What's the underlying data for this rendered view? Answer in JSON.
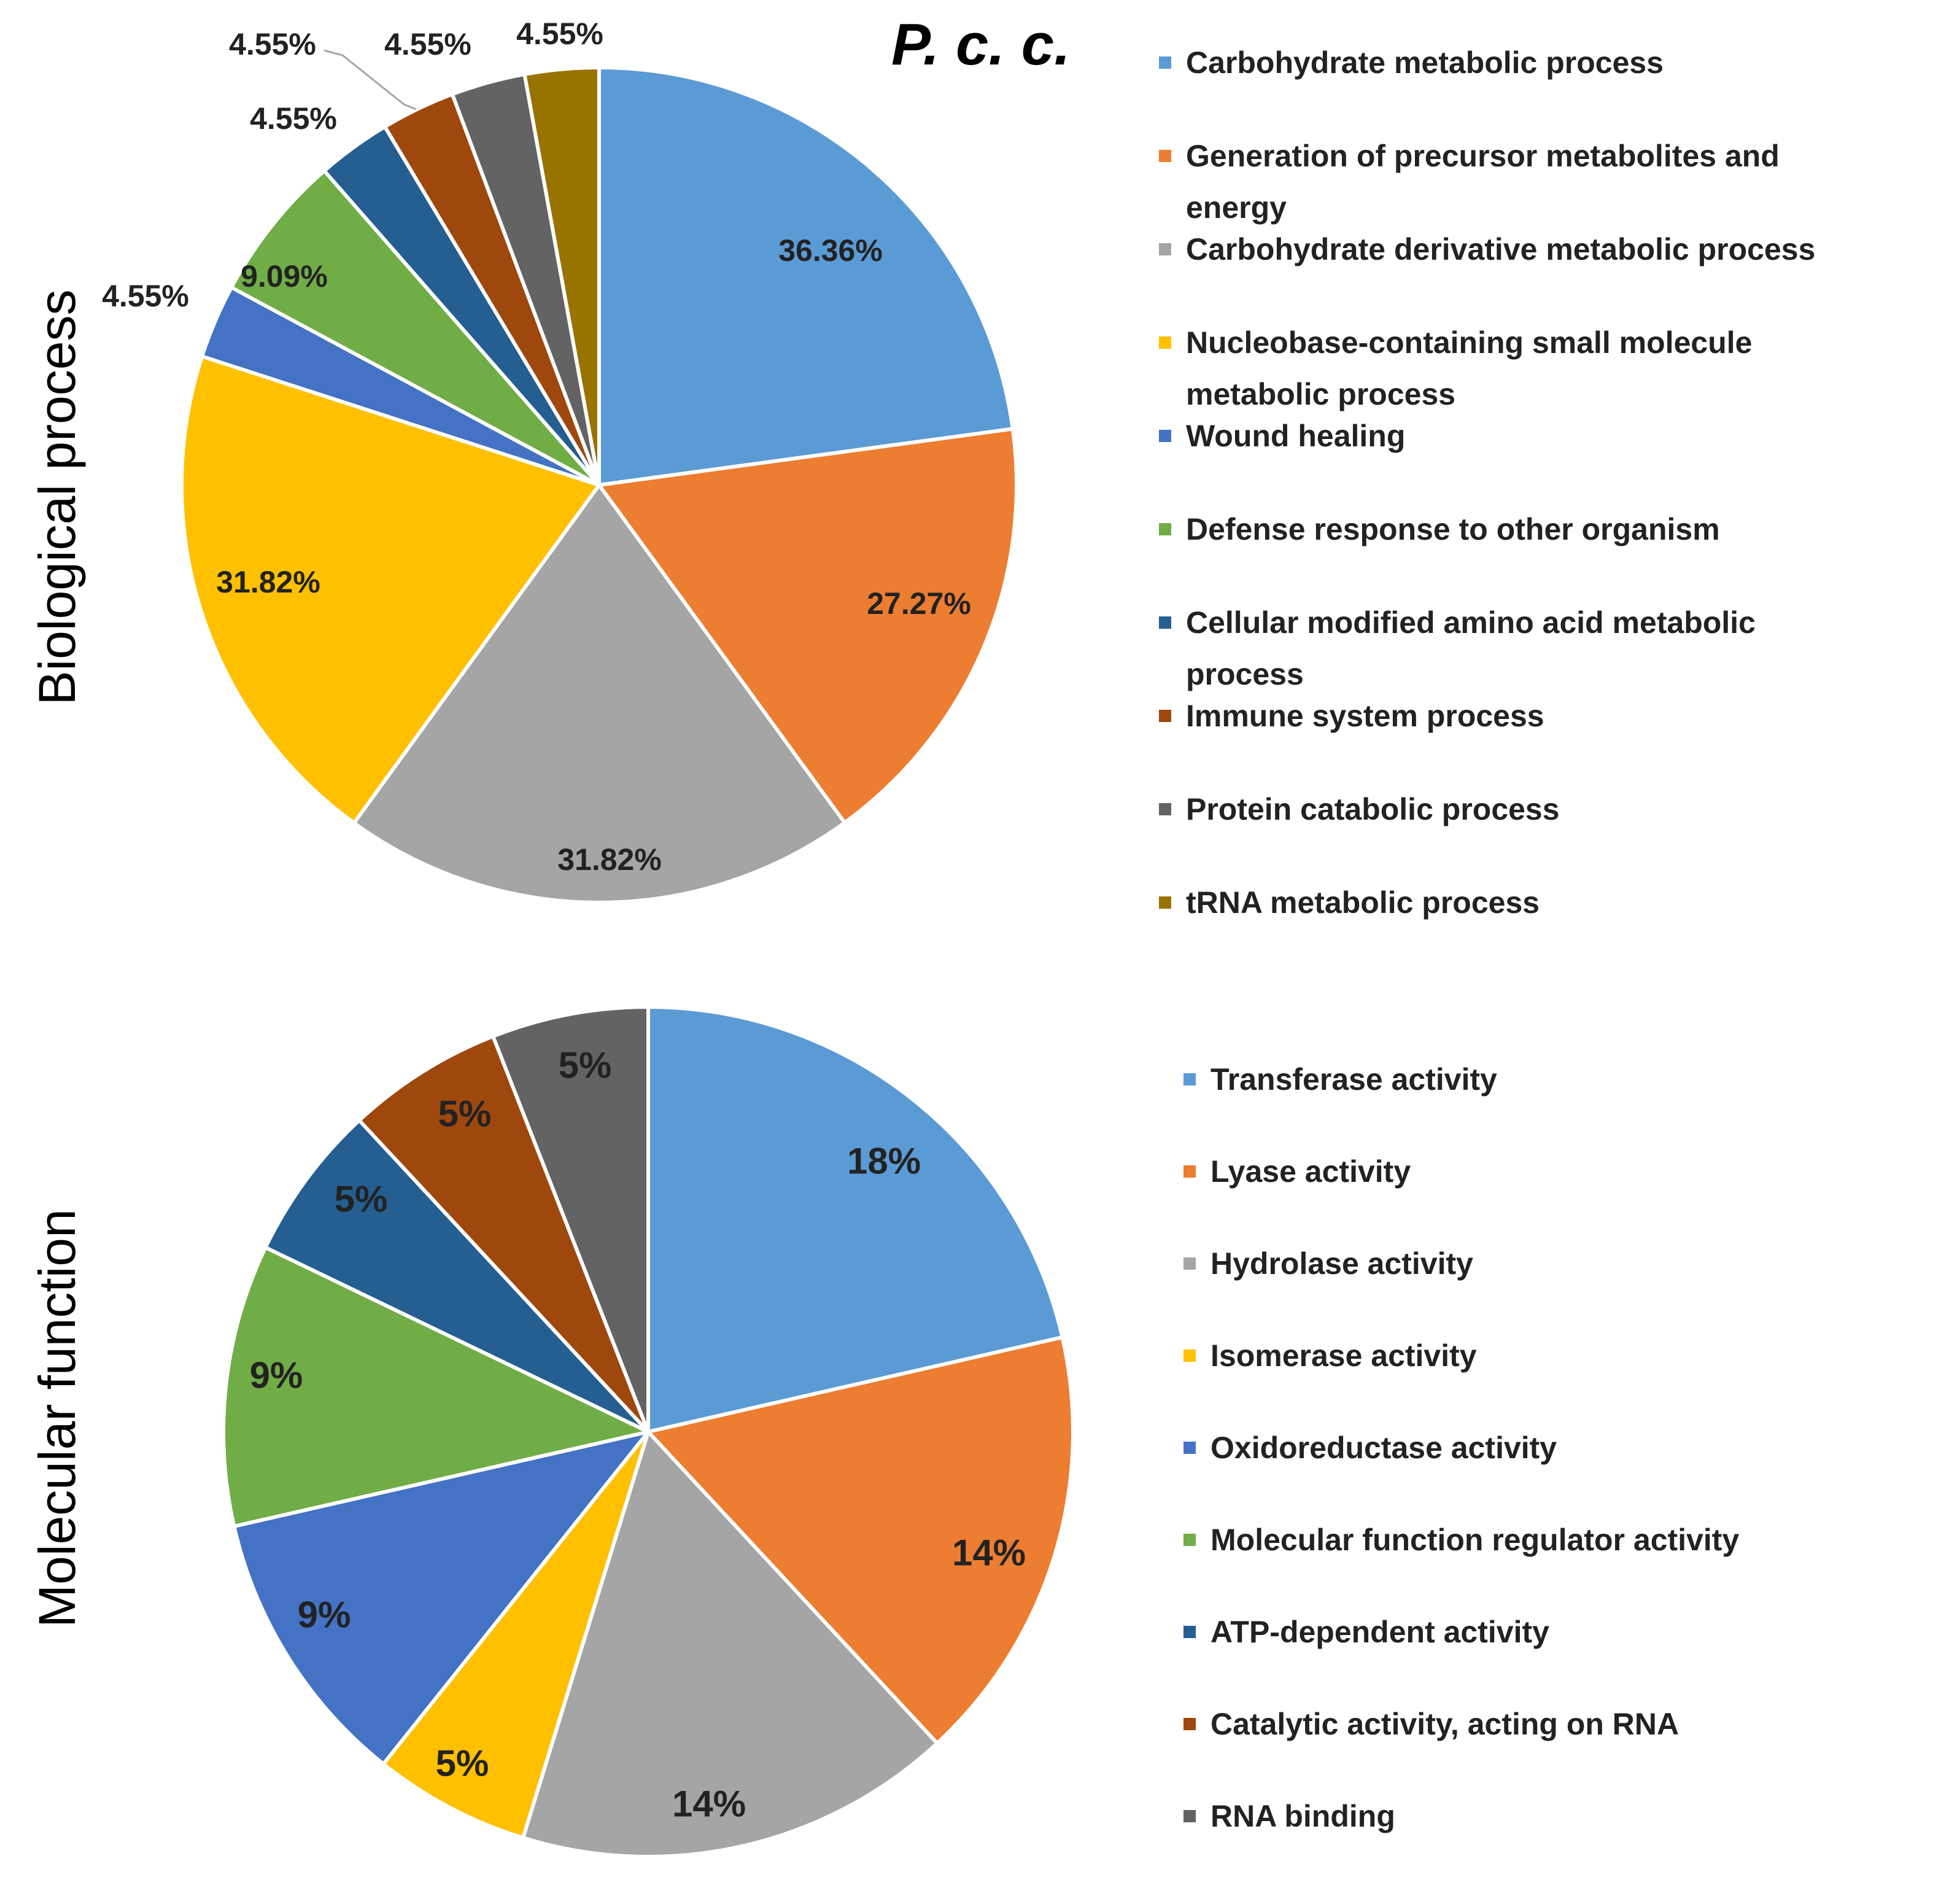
{
  "title": "P. c. c.",
  "chart_data": [
    {
      "type": "pie",
      "name": "Biological process",
      "ylabel": "Biological process",
      "categories": [
        "Carbohydrate metabolic process",
        "Generation of precursor metabolites and energy",
        "Carbohydrate derivative metabolic process",
        "Nucleobase-containing small molecule metabolic process",
        "Wound healing",
        "Defense response to other organism",
        "Cellular modified amino acid metabolic process",
        "Immune system process",
        "Protein catabolic process",
        "tRNA metabolic process"
      ],
      "legend_lines": [
        [
          "Carbohydrate metabolic process"
        ],
        [
          "Generation of precursor metabolites and",
          "energy"
        ],
        [
          "Carbohydrate derivative metabolic process"
        ],
        [
          "Nucleobase-containing small molecule",
          "metabolic process"
        ],
        [
          "Wound healing"
        ],
        [
          "Defense response to other organism"
        ],
        [
          "Cellular modified amino acid metabolic",
          "process"
        ],
        [
          "Immune system process"
        ],
        [
          "Protein catabolic process"
        ],
        [
          "tRNA metabolic process"
        ]
      ],
      "values": [
        36.36,
        27.27,
        31.82,
        31.82,
        4.55,
        9.09,
        4.55,
        4.55,
        4.55,
        4.55
      ],
      "labels": [
        "36.36%",
        "27.27%",
        "31.82%",
        "31.82%",
        "4.55%",
        "9.09%",
        "4.55%",
        "4.55%",
        "4.55%",
        "4.55%"
      ],
      "colors": [
        "#5B9BD5",
        "#ED7D31",
        "#A5A5A5",
        "#FFC000",
        "#4472C4",
        "#70AD47",
        "#255E91",
        "#9E480E",
        "#636363",
        "#997300"
      ],
      "legend_position": "right"
    },
    {
      "type": "pie",
      "name": "Molecular function",
      "ylabel": "Molecular function",
      "categories": [
        "Transferase activity",
        "Lyase activity",
        "Hydrolase activity",
        "Isomerase activity",
        "Oxidoreductase activity",
        "Molecular function regulator activity",
        "ATP-dependent activity",
        "Catalytic activity, acting on RNA",
        "RNA binding"
      ],
      "values": [
        18,
        14,
        14,
        5,
        9,
        9,
        5,
        5,
        5
      ],
      "labels": [
        "18%",
        "14%",
        "14%",
        "5%",
        "9%",
        "9%",
        "5%",
        "5%",
        "5%"
      ],
      "colors": [
        "#5B9BD5",
        "#ED7D31",
        "#A5A5A5",
        "#FFC000",
        "#4472C4",
        "#70AD47",
        "#255E91",
        "#9E480E",
        "#636363"
      ],
      "legend_position": "right"
    }
  ]
}
